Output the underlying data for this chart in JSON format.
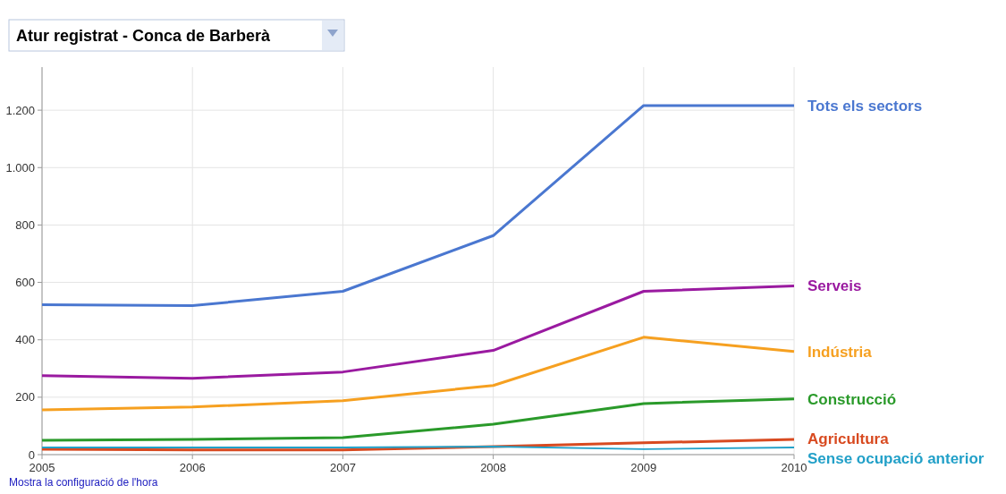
{
  "chart_data": {
    "type": "line",
    "title": "Atur registrat - Conca de Barberà",
    "x": [
      2005,
      2006,
      2007,
      2008,
      2009,
      2010
    ],
    "xlim": [
      2005,
      2010
    ],
    "xticks": [
      2005,
      2006,
      2007,
      2008,
      2009,
      2010
    ],
    "ylim": [
      0,
      1350
    ],
    "yticks": [
      0,
      200,
      400,
      600,
      800,
      {
        "value": 1000,
        "label": "1.000"
      },
      {
        "value": 1200,
        "label": "1.200"
      }
    ],
    "grid": true,
    "legend": "right",
    "line_style": "solid",
    "marker": "none",
    "series": [
      {
        "name": "Tots els sectors",
        "color": "#4a77d0",
        "values": [
          522,
          519,
          569,
          763,
          1216,
          1216
        ]
      },
      {
        "name": "Serveis",
        "color": "#9a1aa0",
        "values": [
          275,
          266,
          288,
          363,
          569,
          588
        ]
      },
      {
        "name": "Indústria",
        "color": "#f6a020",
        "values": [
          156,
          166,
          188,
          241,
          409,
          359
        ]
      },
      {
        "name": "Construcció",
        "color": "#2a9a2a",
        "values": [
          50,
          53,
          59,
          106,
          178,
          194
        ]
      },
      {
        "name": "Agricultura",
        "color": "#d84a20",
        "values": [
          19,
          16,
          16,
          28,
          41,
          53
        ]
      },
      {
        "name": "Sense ocupació anterior",
        "color": "#22a0c8",
        "values": [
          25,
          25,
          25,
          28,
          19,
          25
        ]
      }
    ],
    "annotations": [
      "Mostra la configuració de l'hora"
    ]
  }
}
